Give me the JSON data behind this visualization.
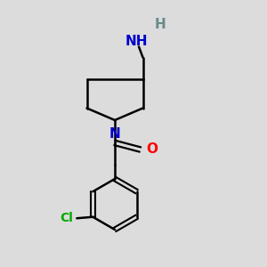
{
  "bg_color": "#dcdcdc",
  "bond_color": "#000000",
  "N_color": "#0000cc",
  "O_color": "#ff0000",
  "Cl_color": "#00aa00",
  "H_color": "#6a8a8a",
  "bond_width": 1.8,
  "figsize": [
    3.0,
    3.0
  ],
  "dpi": 100,
  "xlim": [
    0,
    10
  ],
  "ylim": [
    0,
    10
  ],
  "NH_text": "NH",
  "H_text": "H",
  "N_text": "N",
  "O_text": "O",
  "Cl_text": "Cl"
}
